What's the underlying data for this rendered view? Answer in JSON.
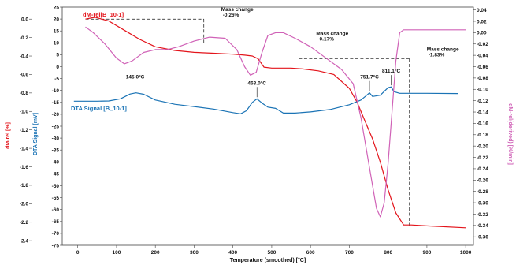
{
  "chart_data": {
    "type": "line",
    "xlabel": "Temperature (smoothed) [°C]",
    "x_axis": {
      "range": [
        -40,
        1020
      ],
      "ticks": [
        0,
        100,
        200,
        300,
        400,
        500,
        600,
        700,
        800,
        900,
        1000
      ]
    },
    "axes": {
      "dm_rel": {
        "label": "dM-rel [%]",
        "color": "#e3141b",
        "side": "left-outer",
        "range": [
          -2.45,
          0.13
        ],
        "ticks": [
          "0.0",
          "-0.2",
          "-0.4",
          "-0.6",
          "-0.8",
          "-1.0",
          "-1.2",
          "-1.4",
          "-1.6",
          "-1.8",
          "-2.0",
          "-2.2",
          "-2.4"
        ]
      },
      "dta": {
        "label": "DTA Signal [mV]",
        "color": "#1a73b5",
        "side": "left-inner",
        "range": [
          -75,
          25
        ],
        "ticks": [
          "25",
          "20",
          "15",
          "10",
          "5",
          "0",
          "-5",
          "-10",
          "-15",
          "-20",
          "-25",
          "-30",
          "-35",
          "-40",
          "-45",
          "-50",
          "-55",
          "-60",
          "-65",
          "-70",
          "-75"
        ]
      },
      "dm_rel_derived": {
        "label": "dM-rel(derived) [%/min]",
        "color": "#d062b7",
        "side": "right",
        "range": [
          -0.375,
          0.045
        ],
        "ticks": [
          "0.04",
          "0.02",
          "0.00",
          "-0.02",
          "-0.04",
          "-0.06",
          "-0.08",
          "-0.10",
          "-0.12",
          "-0.14",
          "-0.16",
          "-0.18",
          "-0.20",
          "-0.22",
          "-0.24",
          "-0.26",
          "-0.28",
          "-0.30",
          "-0.32",
          "-0.34",
          "-0.36"
        ]
      }
    },
    "series": [
      {
        "name": "dM-rel[B_10-1]",
        "axis": "dm_rel",
        "color": "#e3141b",
        "points": [
          [
            20,
            0.0
          ],
          [
            45,
            0.02
          ],
          [
            80,
            -0.02
          ],
          [
            120,
            -0.12
          ],
          [
            160,
            -0.22
          ],
          [
            200,
            -0.3
          ],
          [
            250,
            -0.34
          ],
          [
            300,
            -0.36
          ],
          [
            350,
            -0.37
          ],
          [
            400,
            -0.38
          ],
          [
            430,
            -0.39
          ],
          [
            450,
            -0.4
          ],
          [
            465,
            -0.43
          ],
          [
            480,
            -0.52
          ],
          [
            500,
            -0.53
          ],
          [
            550,
            -0.53
          ],
          [
            580,
            -0.54
          ],
          [
            620,
            -0.56
          ],
          [
            660,
            -0.6
          ],
          [
            700,
            -0.75
          ],
          [
            720,
            -0.9
          ],
          [
            740,
            -1.1
          ],
          [
            760,
            -1.3
          ],
          [
            780,
            -1.55
          ],
          [
            800,
            -1.85
          ],
          [
            820,
            -2.1
          ],
          [
            840,
            -2.23
          ],
          [
            860,
            -2.23
          ],
          [
            900,
            -2.24
          ],
          [
            1000,
            -2.26
          ]
        ]
      },
      {
        "name": "DTA Signal [B_10-1]",
        "axis": "dta",
        "color": "#1a73b5",
        "points": [
          [
            -10,
            -14.5
          ],
          [
            50,
            -14.5
          ],
          [
            80,
            -14.4
          ],
          [
            110,
            -13.5
          ],
          [
            135,
            -11.5
          ],
          [
            150,
            -11.0
          ],
          [
            170,
            -11.6
          ],
          [
            200,
            -14.0
          ],
          [
            250,
            -15.8
          ],
          [
            300,
            -16.8
          ],
          [
            350,
            -17.8
          ],
          [
            400,
            -19.3
          ],
          [
            420,
            -19.8
          ],
          [
            435,
            -18.5
          ],
          [
            450,
            -15.0
          ],
          [
            462,
            -13.5
          ],
          [
            475,
            -15.3
          ],
          [
            490,
            -17.0
          ],
          [
            510,
            -17.5
          ],
          [
            530,
            -19.5
          ],
          [
            560,
            -19.5
          ],
          [
            600,
            -19.0
          ],
          [
            650,
            -18.0
          ],
          [
            700,
            -16.0
          ],
          [
            730,
            -14.0
          ],
          [
            745,
            -12.0
          ],
          [
            752,
            -11.0
          ],
          [
            760,
            -12.5
          ],
          [
            780,
            -12.0
          ],
          [
            800,
            -8.8
          ],
          [
            808,
            -8.5
          ],
          [
            815,
            -10.5
          ],
          [
            830,
            -11.2
          ],
          [
            900,
            -11.2
          ],
          [
            980,
            -11.3
          ]
        ]
      },
      {
        "name": "",
        "axis": "dm_rel_derived",
        "color": "#d062b7",
        "points": [
          [
            20,
            0.01
          ],
          [
            40,
            0.0
          ],
          [
            70,
            -0.02
          ],
          [
            100,
            -0.045
          ],
          [
            120,
            -0.055
          ],
          [
            140,
            -0.05
          ],
          [
            170,
            -0.035
          ],
          [
            200,
            -0.03
          ],
          [
            230,
            -0.03
          ],
          [
            260,
            -0.025
          ],
          [
            300,
            -0.015
          ],
          [
            340,
            -0.008
          ],
          [
            380,
            -0.01
          ],
          [
            410,
            -0.03
          ],
          [
            430,
            -0.06
          ],
          [
            445,
            -0.075
          ],
          [
            460,
            -0.07
          ],
          [
            475,
            -0.035
          ],
          [
            490,
            -0.005
          ],
          [
            510,
            0.0
          ],
          [
            530,
            0.0
          ],
          [
            560,
            -0.01
          ],
          [
            600,
            -0.025
          ],
          [
            640,
            -0.045
          ],
          [
            680,
            -0.065
          ],
          [
            710,
            -0.09
          ],
          [
            730,
            -0.15
          ],
          [
            750,
            -0.23
          ],
          [
            770,
            -0.31
          ],
          [
            780,
            -0.325
          ],
          [
            790,
            -0.3
          ],
          [
            800,
            -0.23
          ],
          [
            810,
            -0.14
          ],
          [
            820,
            -0.05
          ],
          [
            830,
            0.0
          ],
          [
            840,
            0.005
          ],
          [
            860,
            0.005
          ],
          [
            1000,
            0.005
          ]
        ]
      }
    ],
    "legend": {
      "placement": "inline"
    },
    "annotations": {
      "peaks": [
        {
          "text": "145.0°C",
          "x": 148,
          "y": -11.0,
          "axis": "dta"
        },
        {
          "text": "463.0°C",
          "x": 462,
          "y": -13.5,
          "axis": "dta"
        },
        {
          "text": "751.7°C",
          "x": 752,
          "y": -11.0,
          "axis": "dta"
        },
        {
          "text": "811.1°C",
          "x": 808,
          "y": -8.5,
          "axis": "dta"
        }
      ],
      "mass_changes": [
        {
          "title": "Mass change",
          "value": "-0.26%",
          "x_from": 20,
          "x_to": 325,
          "y_start": 0.0,
          "y_end": -0.26
        },
        {
          "title": "Mass change",
          "value": "-0.17%",
          "x_from": 325,
          "x_to": 570,
          "y_start": -0.26,
          "y_end": -0.43
        },
        {
          "title": "Mass change",
          "value": "-1.83%",
          "x_from": 570,
          "x_to": 855,
          "y_start": -0.43,
          "y_end": -2.26
        }
      ]
    }
  }
}
